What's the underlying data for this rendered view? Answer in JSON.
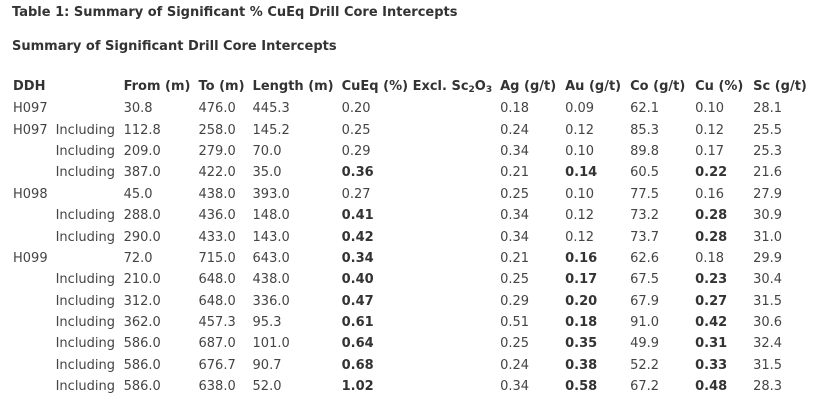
{
  "title": "Table 1: Summary of Significant % CuEq Drill Core Intercepts",
  "subtitle": "Summary of Significant Drill Core Intercepts",
  "headers": {
    "ddh": "DDH",
    "from": "From (m)",
    "to": "To (m)",
    "length": "Length (m)",
    "cueq": "CuEq (%) Excl. Sc",
    "cueq_sub1": "2",
    "cueq_o": "O",
    "cueq_sub2": "3",
    "ag": "Ag (g/t)",
    "au": "Au (g/t)",
    "co": "Co (g/t)",
    "cu": "Cu (%)",
    "sc": "Sc (g/t)"
  },
  "rows": [
    {
      "ddh": "H097",
      "qual": "",
      "from": "30.8",
      "to": "476.0",
      "length": "445.3",
      "cueq": "0.20",
      "ag": "0.18",
      "au": "0.09",
      "co": "62.1",
      "cu": "0.10",
      "sc": "28.1",
      "bold": []
    },
    {
      "ddh": "H097",
      "qual": "Including",
      "from": "112.8",
      "to": "258.0",
      "length": "145.2",
      "cueq": "0.25",
      "ag": "0.24",
      "au": "0.12",
      "co": "85.3",
      "cu": "0.12",
      "sc": "25.5",
      "bold": []
    },
    {
      "ddh": "",
      "qual": "Including",
      "from": "209.0",
      "to": "279.0",
      "length": "70.0",
      "cueq": "0.29",
      "ag": "0.34",
      "au": "0.10",
      "co": "89.8",
      "cu": "0.17",
      "sc": "25.3",
      "bold": []
    },
    {
      "ddh": "",
      "qual": "Including",
      "from": "387.0",
      "to": "422.0",
      "length": "35.0",
      "cueq": "0.36",
      "ag": "0.21",
      "au": "0.14",
      "co": "60.5",
      "cu": "0.22",
      "sc": "21.6",
      "bold": [
        "cueq",
        "au",
        "cu"
      ]
    },
    {
      "ddh": "H098",
      "qual": "",
      "from": "45.0",
      "to": "438.0",
      "length": "393.0",
      "cueq": "0.27",
      "ag": "0.25",
      "au": "0.10",
      "co": "77.5",
      "cu": "0.16",
      "sc": "27.9",
      "bold": []
    },
    {
      "ddh": "",
      "qual": "Including",
      "from": "288.0",
      "to": "436.0",
      "length": "148.0",
      "cueq": "0.41",
      "ag": "0.34",
      "au": "0.12",
      "co": "73.2",
      "cu": "0.28",
      "sc": "30.9",
      "bold": [
        "cueq",
        "cu"
      ]
    },
    {
      "ddh": "",
      "qual": "Including",
      "from": "290.0",
      "to": "433.0",
      "length": "143.0",
      "cueq": "0.42",
      "ag": "0.34",
      "au": "0.12",
      "co": "73.7",
      "cu": "0.28",
      "sc": "31.0",
      "bold": [
        "cueq",
        "cu"
      ]
    },
    {
      "ddh": "H099",
      "qual": "",
      "from": "72.0",
      "to": "715.0",
      "length": "643.0",
      "cueq": "0.34",
      "ag": "0.21",
      "au": "0.16",
      "co": "62.6",
      "cu": "0.18",
      "sc": "29.9",
      "bold": [
        "cueq",
        "au"
      ]
    },
    {
      "ddh": "",
      "qual": "Including",
      "from": "210.0",
      "to": "648.0",
      "length": "438.0",
      "cueq": "0.40",
      "ag": "0.25",
      "au": "0.17",
      "co": "67.5",
      "cu": "0.23",
      "sc": "30.4",
      "bold": [
        "cueq",
        "au",
        "cu"
      ]
    },
    {
      "ddh": "",
      "qual": "Including",
      "from": "312.0",
      "to": "648.0",
      "length": "336.0",
      "cueq": "0.47",
      "ag": "0.29",
      "au": "0.20",
      "co": "67.9",
      "cu": "0.27",
      "sc": "31.5",
      "bold": [
        "cueq",
        "au",
        "cu"
      ]
    },
    {
      "ddh": "",
      "qual": "Including",
      "from": "362.0",
      "to": "457.3",
      "length": "95.3",
      "cueq": "0.61",
      "ag": "0.51",
      "au": "0.18",
      "co": "91.0",
      "cu": "0.42",
      "sc": "30.6",
      "bold": [
        "cueq",
        "au",
        "cu"
      ]
    },
    {
      "ddh": "",
      "qual": "Including",
      "from": "586.0",
      "to": "687.0",
      "length": "101.0",
      "cueq": "0.64",
      "ag": "0.25",
      "au": "0.35",
      "co": "49.9",
      "cu": "0.31",
      "sc": "32.4",
      "bold": [
        "cueq",
        "au",
        "cu"
      ]
    },
    {
      "ddh": "",
      "qual": "Including",
      "from": "586.0",
      "to": "676.7",
      "length": "90.7",
      "cueq": "0.68",
      "ag": "0.24",
      "au": "0.38",
      "co": "52.2",
      "cu": "0.33",
      "sc": "31.5",
      "bold": [
        "cueq",
        "au",
        "cu"
      ]
    },
    {
      "ddh": "",
      "qual": "Including",
      "from": "586.0",
      "to": "638.0",
      "length": "52.0",
      "cueq": "1.02",
      "ag": "0.34",
      "au": "0.58",
      "co": "67.2",
      "cu": "0.48",
      "sc": "28.3",
      "bold": [
        "cueq",
        "au",
        "cu"
      ]
    }
  ]
}
